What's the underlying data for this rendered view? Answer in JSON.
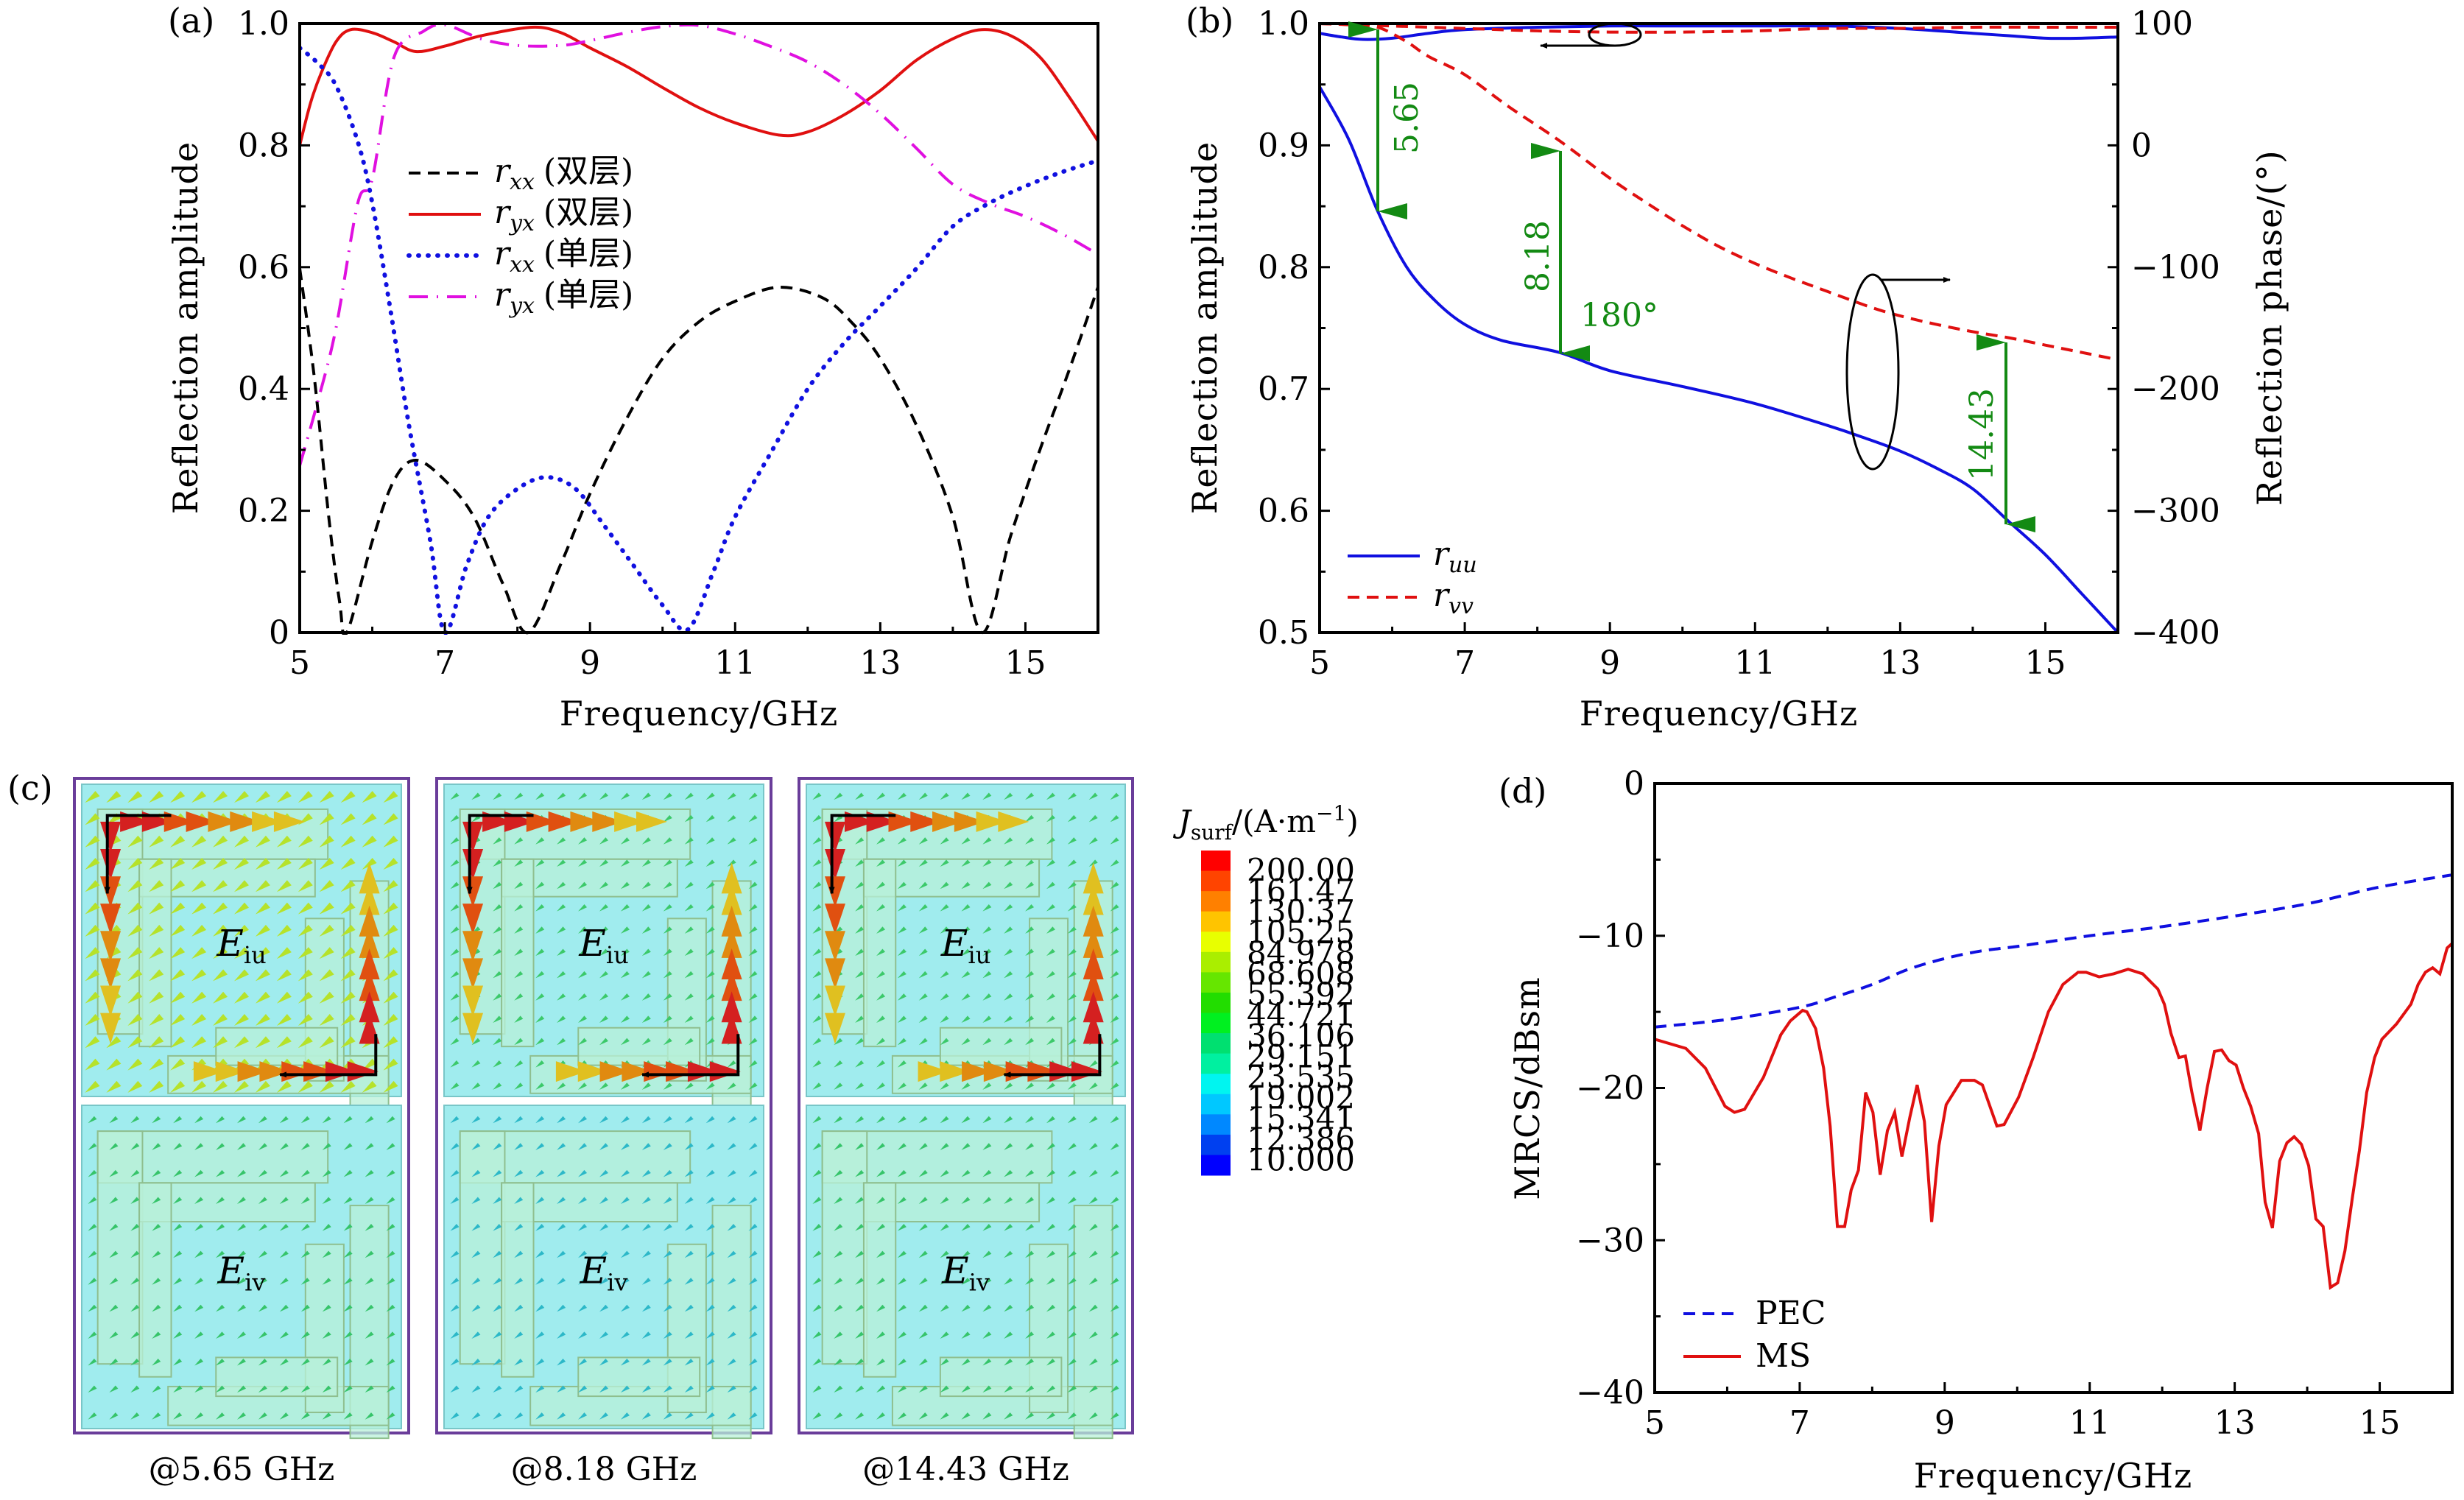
{
  "figure": {
    "panels": [
      "(a)",
      "(b)",
      "(c)",
      "(d)"
    ]
  },
  "chart_data": [
    {
      "id": "a",
      "type": "line",
      "panel_label": "(a)",
      "title": "",
      "xlabel": "Frequency/GHz",
      "ylabel": "Reflection amplitude",
      "xlim": [
        5,
        16
      ],
      "ylim": [
        0,
        1.0
      ],
      "xticks": [
        5,
        7,
        9,
        11,
        13,
        15
      ],
      "xtick_labels": [
        "5",
        "7",
        "9",
        "11",
        "13",
        "15"
      ],
      "yticks": [
        0,
        0.2,
        0.4,
        0.6,
        0.8,
        1.0
      ],
      "ytick_labels": [
        "0",
        "0.2",
        "0.4",
        "0.6",
        "0.8",
        "1.0"
      ],
      "grid": false,
      "legend_position": "center-left",
      "series": [
        {
          "name": "r_xx (双层)",
          "label_main": "r",
          "label_sub": "xx",
          "label_note": "(双层)",
          "color": "#000000",
          "style": "dashed",
          "x": [
            5,
            5.2,
            5.4,
            5.55,
            5.65,
            6.0,
            6.3,
            6.6,
            7.0,
            7.4,
            7.8,
            8.15,
            8.6,
            9.0,
            9.5,
            10.0,
            10.5,
            11.0,
            11.6,
            12.2,
            12.6,
            13.0,
            13.5,
            14.0,
            14.4,
            14.8,
            15.2,
            15.6,
            16.0
          ],
          "y": [
            0.598,
            0.42,
            0.19,
            0.05,
            0.0,
            0.15,
            0.25,
            0.283,
            0.25,
            0.19,
            0.08,
            0.0,
            0.113,
            0.228,
            0.35,
            0.45,
            0.51,
            0.544,
            0.567,
            0.55,
            0.51,
            0.45,
            0.34,
            0.19,
            0.0,
            0.16,
            0.3,
            0.43,
            0.567
          ]
        },
        {
          "name": "r_yx (双层)",
          "label_main": "r",
          "label_sub": "yx",
          "label_note": "(双层)",
          "color": "#e01010",
          "style": "solid",
          "x": [
            5,
            5.15,
            5.3,
            5.5,
            5.7,
            6.0,
            6.3,
            6.6,
            7.0,
            7.5,
            8.2,
            8.6,
            9.0,
            9.5,
            10.0,
            10.5,
            11.0,
            11.6,
            12.0,
            12.5,
            13.0,
            13.5,
            14.0,
            14.4,
            14.8,
            15.2,
            15.6,
            16.0
          ],
          "y": [
            0.8,
            0.87,
            0.92,
            0.97,
            0.99,
            0.985,
            0.97,
            0.954,
            0.963,
            0.98,
            0.994,
            0.985,
            0.96,
            0.93,
            0.895,
            0.862,
            0.837,
            0.817,
            0.822,
            0.85,
            0.89,
            0.94,
            0.975,
            0.99,
            0.98,
            0.945,
            0.88,
            0.807
          ]
        },
        {
          "name": "r_xx (单层)",
          "label_main": "r",
          "label_sub": "xx",
          "label_note": "(单层)",
          "color": "#1010e0",
          "style": "dotted",
          "x": [
            5,
            5.25,
            5.5,
            5.8,
            6.0,
            6.25,
            6.5,
            6.8,
            7.0,
            7.3,
            7.6,
            8.0,
            8.4,
            8.8,
            9.2,
            9.6,
            10.0,
            10.35,
            10.7,
            11.0,
            11.5,
            12.0,
            12.5,
            13.0,
            13.5,
            14.0,
            14.5,
            15.0,
            15.5,
            16.0
          ],
          "y": [
            0.96,
            0.935,
            0.898,
            0.806,
            0.705,
            0.53,
            0.344,
            0.15,
            0.0,
            0.11,
            0.19,
            0.236,
            0.255,
            0.236,
            0.175,
            0.11,
            0.045,
            0.005,
            0.1,
            0.19,
            0.297,
            0.4,
            0.475,
            0.536,
            0.598,
            0.667,
            0.705,
            0.733,
            0.756,
            0.775
          ]
        },
        {
          "name": "r_yx (单层)",
          "label_main": "r",
          "label_sub": "yx",
          "label_note": "(单层)",
          "color": "#e010e0",
          "style": "dashdot",
          "x": [
            5,
            5.25,
            5.5,
            5.8,
            6.0,
            6.3,
            6.7,
            7.0,
            7.5,
            8.0,
            8.6,
            9.0,
            9.5,
            10.0,
            10.5,
            11.0,
            11.5,
            12.0,
            12.5,
            13.0,
            13.5,
            14.0,
            14.5,
            15.0,
            15.5,
            16.0
          ],
          "y": [
            0.274,
            0.38,
            0.5,
            0.705,
            0.745,
            0.945,
            0.987,
            0.998,
            0.975,
            0.964,
            0.964,
            0.972,
            0.985,
            0.995,
            0.997,
            0.983,
            0.962,
            0.937,
            0.9,
            0.852,
            0.795,
            0.736,
            0.705,
            0.683,
            0.655,
            0.621
          ]
        }
      ]
    },
    {
      "id": "b",
      "type": "line",
      "panel_label": "(b)",
      "xlabel": "Frequency/GHz",
      "ylabel": "Reflection amplitude",
      "ylabel_right": "Reflection phase/(°)",
      "xlim": [
        5,
        16
      ],
      "ylim": [
        0.5,
        1.0
      ],
      "ylim_right": [
        -400,
        100
      ],
      "xticks": [
        5,
        7,
        9,
        11,
        13,
        15
      ],
      "xtick_labels": [
        "5",
        "7",
        "9",
        "11",
        "13",
        "15"
      ],
      "yticks": [
        0.5,
        0.6,
        0.7,
        0.8,
        0.9,
        1.0
      ],
      "ytick_labels": [
        "0.5",
        "0.6",
        "0.7",
        "0.8",
        "0.9",
        "1.0"
      ],
      "yticks_right": [
        -400,
        -300,
        -200,
        -100,
        0,
        100
      ],
      "ytick_labels_right": [
        "−400",
        "−300",
        "−200",
        "−100",
        "0",
        "100"
      ],
      "grid": false,
      "legend_position": "bottom-left",
      "legend": [
        {
          "label_main": "r",
          "label_sub": "uu",
          "color": "#1010e0",
          "style": "solid"
        },
        {
          "label_main": "r",
          "label_sub": "vv",
          "color": "#e01010",
          "style": "dashed"
        }
      ],
      "series": [
        {
          "name": "r_uu amplitude",
          "axis": "left",
          "color": "#1010e0",
          "style": "solid",
          "x": [
            5,
            5.3,
            5.6,
            6.0,
            6.5,
            7.0,
            8.0,
            9.0,
            10.0,
            11.0,
            12.0,
            13.0,
            14.0,
            14.5,
            15.0,
            15.5,
            16.0
          ],
          "y": [
            0.992,
            0.989,
            0.987,
            0.988,
            0.992,
            0.995,
            0.997,
            0.998,
            0.998,
            0.998,
            0.998,
            0.996,
            0.992,
            0.99,
            0.988,
            0.988,
            0.989
          ]
        },
        {
          "name": "r_vv amplitude",
          "axis": "left",
          "color": "#e01010",
          "style": "dashed",
          "x": [
            5,
            6,
            7,
            8,
            9,
            10,
            11,
            12,
            13,
            14,
            15,
            16
          ],
          "y": [
            1.0,
            0.998,
            0.996,
            0.994,
            0.993,
            0.993,
            0.994,
            0.996,
            0.996,
            0.997,
            0.997,
            0.997
          ]
        },
        {
          "name": "r_uu phase",
          "axis": "right",
          "color": "#1010e0",
          "style": "solid",
          "x": [
            5,
            5.4,
            5.8,
            6.2,
            6.6,
            7.0,
            7.5,
            8.3,
            9.0,
            10.0,
            11.0,
            12.0,
            12.5,
            13.0,
            13.5,
            14.0,
            14.5,
            15.0,
            15.5,
            16.0
          ],
          "y": [
            48,
            5,
            -54,
            -100,
            -128,
            -147,
            -160,
            -170,
            -185,
            -198,
            -212,
            -230,
            -240,
            -251,
            -265,
            -282,
            -309,
            -336,
            -368,
            -400
          ]
        },
        {
          "name": "r_vv phase",
          "axis": "right",
          "color": "#e01010",
          "style": "dashed",
          "x": [
            5,
            5.4,
            5.8,
            6.2,
            6.5,
            7.0,
            7.6,
            8.3,
            9.0,
            9.5,
            10.0,
            10.5,
            11.0,
            11.5,
            12.0,
            12.6,
            13.0,
            13.5,
            14.0,
            14.5,
            15.0,
            15.5,
            16.0
          ],
          "y": [
            100,
            99,
            97,
            85,
            73,
            58,
            32,
            4,
            -27,
            -47,
            -66,
            -83,
            -97,
            -109,
            -120,
            -133,
            -140,
            -147,
            -153,
            -158,
            -164,
            -170,
            -176
          ]
        }
      ],
      "annotations": [
        {
          "text": "5.65",
          "x": 5.8,
          "from_phase": 97,
          "to_phase": -54,
          "color": "#138a13"
        },
        {
          "text": "8.18",
          "x": 8.3,
          "from_phase": 4,
          "to_phase": -170,
          "color": "#138a13"
        },
        {
          "text": "180°",
          "color": "#138a13"
        },
        {
          "text": "14.43",
          "x": 14.5,
          "from_phase": -158,
          "to_phase": -309,
          "color": "#138a13"
        }
      ]
    },
    {
      "id": "c",
      "type": "heatmap",
      "panel_label": "(c)",
      "colorbar_title_main": "J",
      "colorbar_title_sub": "surf",
      "colorbar_title_unit": "/(A·m",
      "colorbar_title_sup": "−1",
      "colorbar_title_end": ")",
      "colorbar_levels": [
        "200.00",
        "161.47",
        "130.37",
        "105.25",
        "84.978",
        "68.608",
        "55.392",
        "44.721",
        "36.106",
        "29.151",
        "23.535",
        "19.002",
        "15.341",
        "12.386",
        "10.000"
      ],
      "colorbar_colors": [
        "#ff0000",
        "#ff4400",
        "#ff8000",
        "#ffc400",
        "#e8ff00",
        "#aaee00",
        "#66e600",
        "#22dd00",
        "#00f020",
        "#00e070",
        "#00f0a0",
        "#00f5f0",
        "#00c8ff",
        "#0088ff",
        "#0040f0",
        "#0000ff"
      ],
      "field_labels": {
        "top_main": "E",
        "top_sub": "iu",
        "bottom_main": "E",
        "bottom_sub": "iv"
      },
      "subplots": [
        {
          "caption": "@5.65 GHz",
          "frequency_ghz": 5.65
        },
        {
          "caption": "@8.18 GHz",
          "frequency_ghz": 8.18
        },
        {
          "caption": "@14.43 GHz",
          "frequency_ghz": 14.43
        }
      ]
    },
    {
      "id": "d",
      "type": "line",
      "panel_label": "(d)",
      "xlabel": "Frequency/GHz",
      "ylabel": "MRCS/dBsm",
      "xlim": [
        5,
        16
      ],
      "ylim": [
        -40,
        0
      ],
      "xticks": [
        5,
        7,
        9,
        11,
        13,
        15
      ],
      "xtick_labels": [
        "5",
        "7",
        "9",
        "11",
        "13",
        "15"
      ],
      "yticks": [
        -40,
        -30,
        -20,
        -10,
        0
      ],
      "ytick_labels": [
        "−40",
        "−30",
        "−20",
        "−10",
        "0"
      ],
      "grid": false,
      "legend_position": "bottom-left",
      "series": [
        {
          "name": "PEC",
          "color": "#1010e0",
          "style": "dashed",
          "x": [
            5,
            6,
            7,
            7.5,
            8,
            8.5,
            9,
            9.5,
            10,
            11,
            12,
            13,
            14,
            15,
            16
          ],
          "y": [
            -16.0,
            -15.5,
            -14.7,
            -14.0,
            -13.2,
            -12.2,
            -11.5,
            -11.0,
            -10.7,
            -10.0,
            -9.4,
            -8.7,
            -7.9,
            -6.8,
            -6.0
          ]
        },
        {
          "name": "MS",
          "color": "#e01010",
          "style": "solid",
          "x": [
            5,
            5.43,
            5.7,
            5.97,
            6.1,
            6.24,
            6.5,
            6.74,
            6.87,
            7.04,
            7.1,
            7.22,
            7.33,
            7.42,
            7.52,
            7.62,
            7.71,
            7.81,
            7.91,
            8.01,
            8.11,
            8.21,
            8.31,
            8.41,
            8.52,
            8.62,
            8.72,
            8.82,
            8.92,
            9.02,
            9.23,
            9.41,
            9.52,
            9.72,
            9.82,
            10.02,
            10.22,
            10.43,
            10.63,
            10.84,
            10.95,
            11.13,
            11.33,
            11.53,
            11.73,
            11.94,
            12.03,
            12.12,
            12.23,
            12.32,
            12.41,
            12.52,
            12.62,
            12.72,
            12.82,
            12.92,
            13.02,
            13.12,
            13.22,
            13.33,
            13.42,
            13.52,
            13.62,
            13.72,
            13.82,
            13.92,
            14.02,
            14.12,
            14.22,
            14.32,
            14.42,
            14.52,
            14.62,
            14.72,
            14.82,
            14.93,
            15.03,
            15.23,
            15.43,
            15.53,
            15.63,
            15.73,
            15.83,
            15.93,
            16.0
          ],
          "y": [
            -16.8,
            -17.4,
            -18.7,
            -21.2,
            -21.6,
            -21.4,
            -19.3,
            -16.5,
            -15.6,
            -14.9,
            -15.0,
            -16.1,
            -18.7,
            -22.5,
            -29.1,
            -29.1,
            -26.7,
            -25.4,
            -20.3,
            -21.6,
            -25.7,
            -22.8,
            -21.6,
            -24.5,
            -21.9,
            -19.8,
            -22.2,
            -28.8,
            -23.8,
            -21.1,
            -19.5,
            -19.5,
            -19.8,
            -22.5,
            -22.4,
            -20.6,
            -18.0,
            -15.0,
            -13.2,
            -12.4,
            -12.4,
            -12.7,
            -12.5,
            -12.2,
            -12.5,
            -13.5,
            -14.5,
            -16.4,
            -18.0,
            -17.9,
            -20.3,
            -22.8,
            -20.0,
            -17.6,
            -17.5,
            -18.2,
            -18.5,
            -20.0,
            -21.2,
            -23.0,
            -27.5,
            -29.2,
            -24.8,
            -23.6,
            -23.2,
            -23.7,
            -25.1,
            -28.6,
            -29.1,
            -33.1,
            -32.8,
            -30.7,
            -27.3,
            -24.1,
            -20.3,
            -18.0,
            -16.8,
            -15.8,
            -14.5,
            -13.2,
            -12.4,
            -12.1,
            -12.5,
            -10.8,
            -10.5
          ]
        }
      ]
    }
  ]
}
